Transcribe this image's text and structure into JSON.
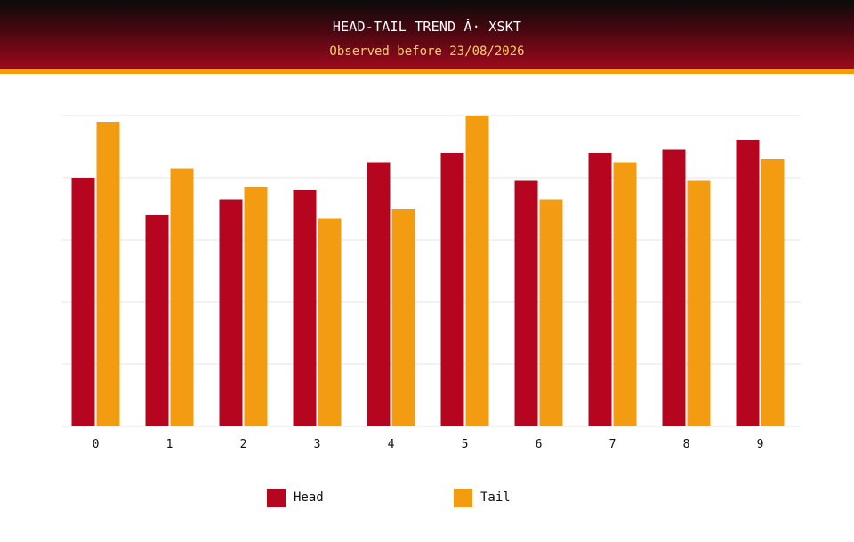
{
  "header": {
    "title": "HEAD-TAIL TREND Â· XSKT",
    "subtitle": "Observed before 23/08/2026"
  },
  "colors": {
    "head": "#b5051f",
    "tail": "#f39c12",
    "grid": "#e6e6e6",
    "header_stripe": "#f39c12"
  },
  "chart_data": {
    "type": "bar",
    "title": "HEAD-TAIL TREND Â· XSKT",
    "subtitle": "Observed before 23/08/2026",
    "categories": [
      "0",
      "1",
      "2",
      "3",
      "4",
      "5",
      "6",
      "7",
      "8",
      "9"
    ],
    "series": [
      {
        "name": "Head",
        "values": [
          80,
          68,
          73,
          76,
          85,
          88,
          79,
          88,
          89,
          92
        ]
      },
      {
        "name": "Tail",
        "values": [
          98,
          83,
          77,
          67,
          70,
          100,
          73,
          85,
          79,
          86
        ]
      }
    ],
    "xlabel": "",
    "ylabel": "",
    "ylim": [
      0,
      100
    ],
    "y_ticks_shown": false,
    "grid": true,
    "legend_position": "bottom"
  },
  "legend": {
    "head_label": "Head",
    "tail_label": "Tail"
  }
}
